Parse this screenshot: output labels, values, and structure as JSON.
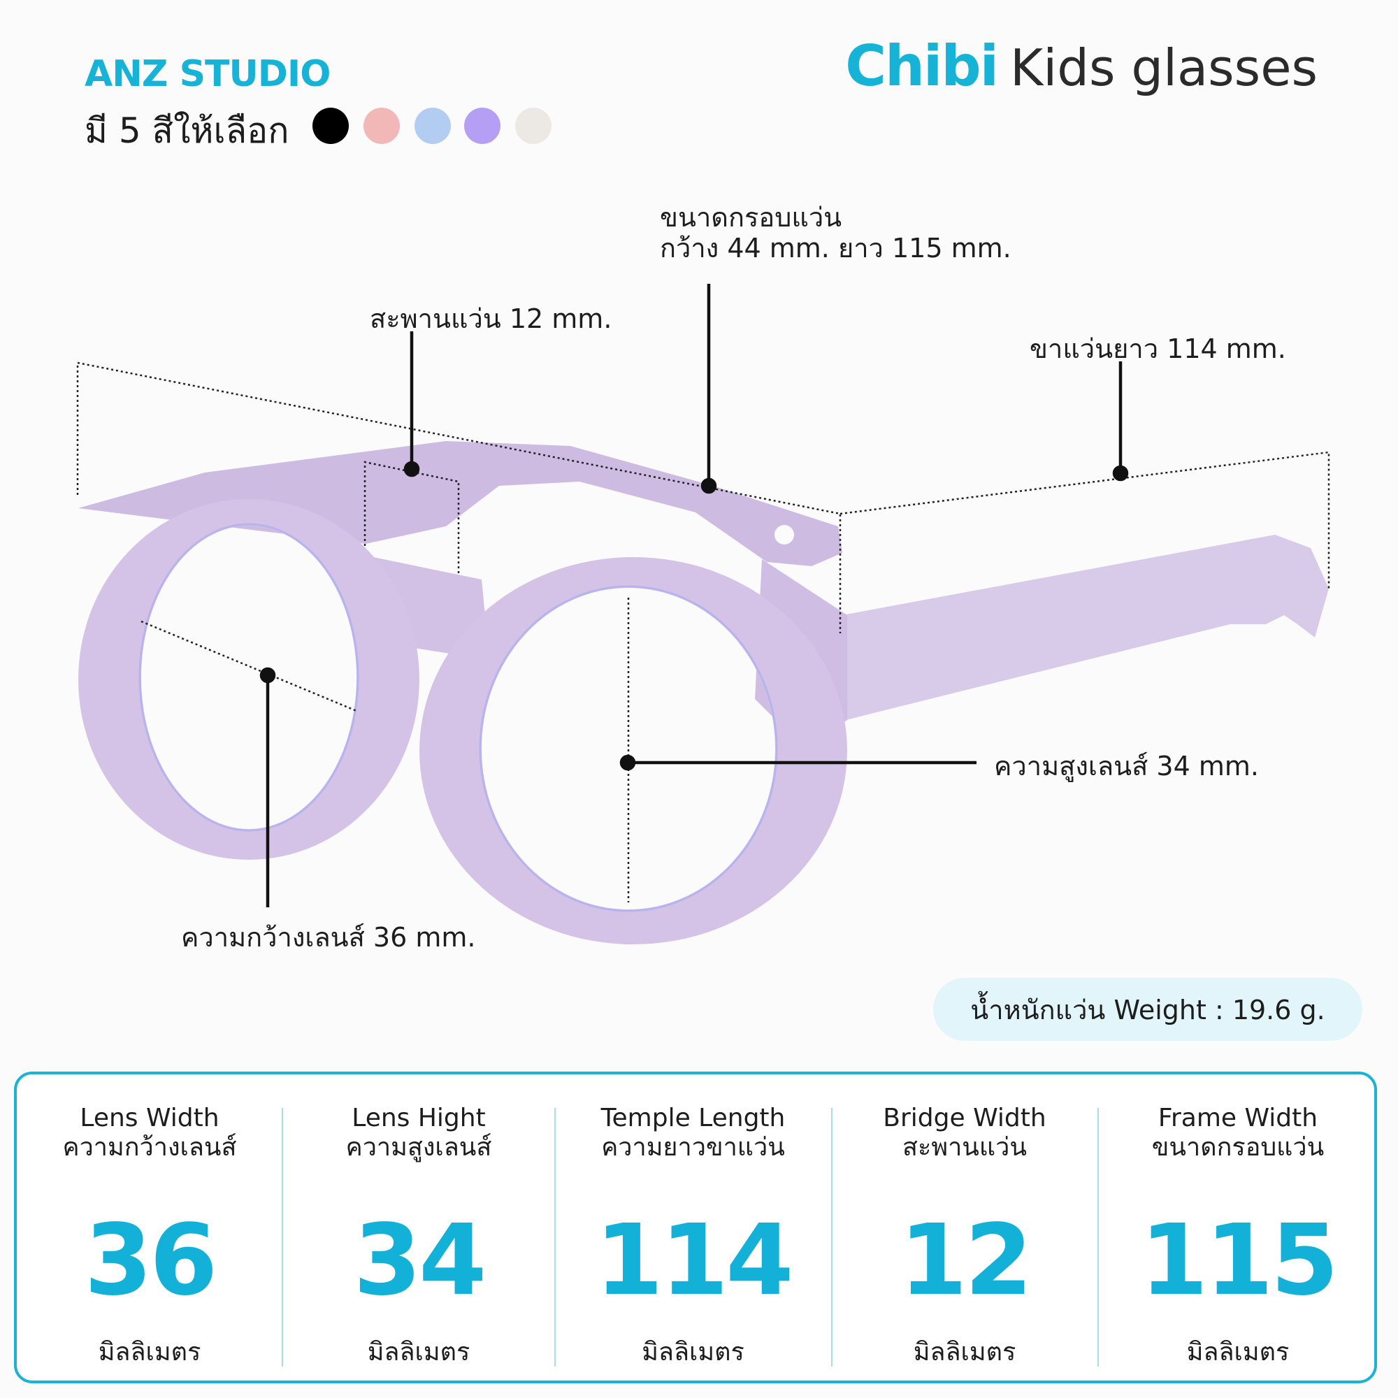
{
  "brand": "ANZ STUDIO",
  "colors_label": "มี 5 สีให้เลือก",
  "color_options": [
    "#000000",
    "#f2b8b8",
    "#b3cdf2",
    "#b49ff5",
    "#ece9e5"
  ],
  "title": {
    "name": "Chibi",
    "subtitle": "Kids glasses"
  },
  "frame_color": "#d4c3e6",
  "accent_color": "#17b3d6",
  "annotations": {
    "frame_size_line1": "ขนาดกรอบแว่น",
    "frame_size_line2": "กว้าง 44 mm. ยาว 115 mm.",
    "bridge": "สะพานแว่น 12 mm.",
    "temple": "ขาแว่นยาว 114 mm.",
    "lens_height": "ความสูงเลนส์ 34 mm.",
    "lens_width": "ความกว้างเลนส์ 36 mm."
  },
  "weight": "น้ำหนักแว่น Weight  : 19.6 g.",
  "specs": [
    {
      "en": "Lens Width",
      "th": "ความกว้างเลนส์",
      "value": "36",
      "unit": "มิลลิเมตร"
    },
    {
      "en": "Lens Hight",
      "th": "ความสูงเลนส์",
      "value": "34",
      "unit": "มิลลิเมตร"
    },
    {
      "en": "Temple Length",
      "th": "ความยาวขาแว่น",
      "value": "114",
      "unit": "มิลลิเมตร"
    },
    {
      "en": "Bridge Width",
      "th": "สะพานแว่น",
      "value": "12",
      "unit": "มิลลิเมตร"
    },
    {
      "en": "Frame Width",
      "th": "ขนาดกรอบแว่น",
      "value": "115",
      "unit": "มิลลิเมตร"
    }
  ]
}
